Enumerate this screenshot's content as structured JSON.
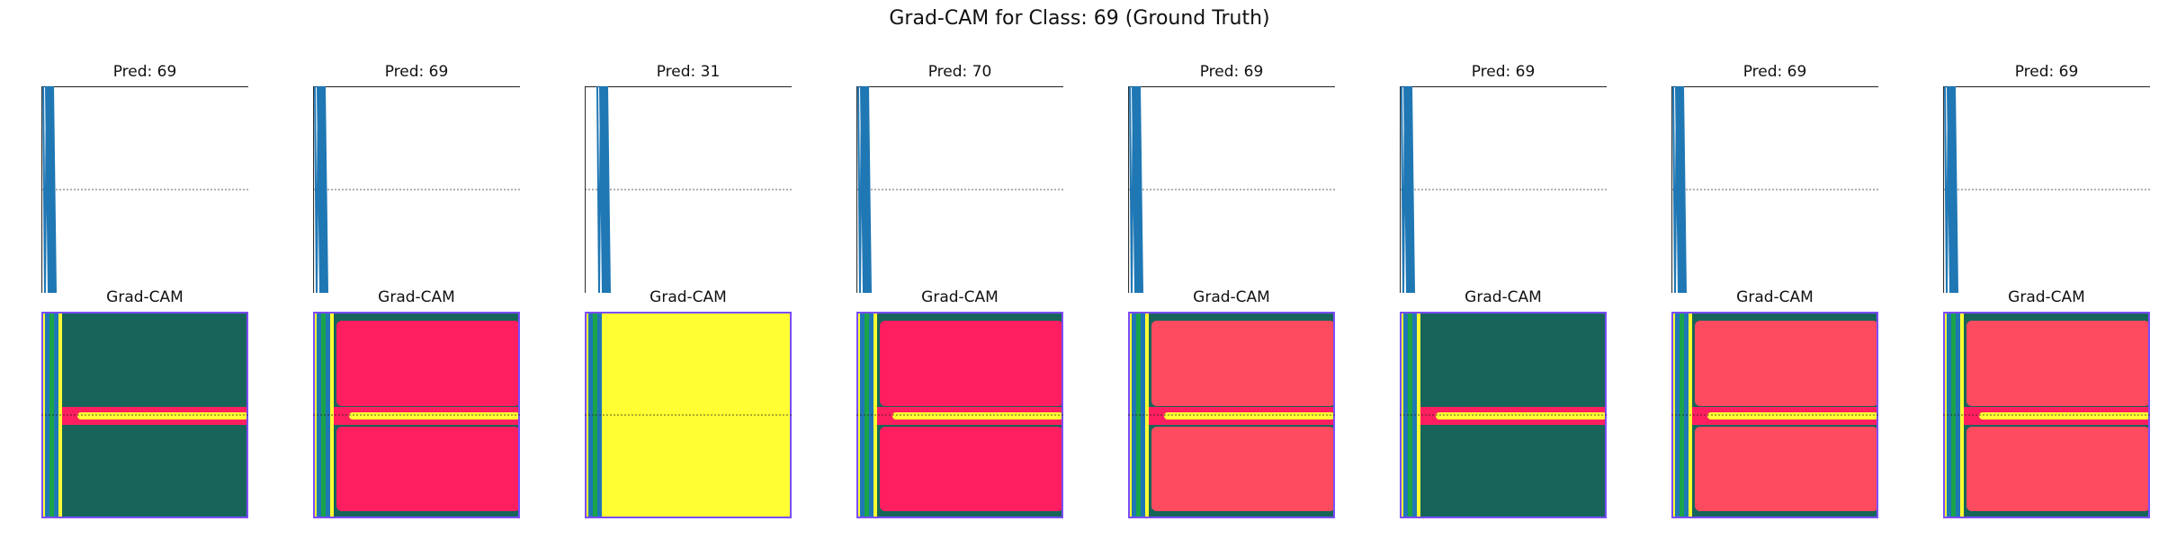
{
  "figure": {
    "title": "Grad-CAM for Class: 69 (Ground Truth)"
  },
  "chart_data": {
    "type": "grid",
    "rows": 2,
    "columns": 8,
    "panels": [
      {
        "pred_label": "Pred: 69",
        "cam_label": "Grad-CAM",
        "cam_style": "teal"
      },
      {
        "pred_label": "Pred: 69",
        "cam_label": "Grad-CAM",
        "cam_style": "red"
      },
      {
        "pred_label": "Pred: 31",
        "cam_label": "Grad-CAM",
        "cam_style": "yellow"
      },
      {
        "pred_label": "Pred: 70",
        "cam_label": "Grad-CAM",
        "cam_style": "red"
      },
      {
        "pred_label": "Pred: 69",
        "cam_label": "Grad-CAM",
        "cam_style": "salmon"
      },
      {
        "pred_label": "Pred: 69",
        "cam_label": "Grad-CAM",
        "cam_style": "teal"
      },
      {
        "pred_label": "Pred: 69",
        "cam_label": "Grad-CAM",
        "cam_style": "salmon"
      },
      {
        "pred_label": "Pred: 69",
        "cam_label": "Grad-CAM",
        "cam_style": "salmon"
      }
    ],
    "colors": {
      "signal": "#1f77b4",
      "teal": "#17655a",
      "red": "#ff1f60",
      "salmon": "#ff4b60",
      "yellow": "#ffff33",
      "green": "#1aa34a",
      "violet": "#7a4dff",
      "edge": "#2f3f66"
    }
  }
}
